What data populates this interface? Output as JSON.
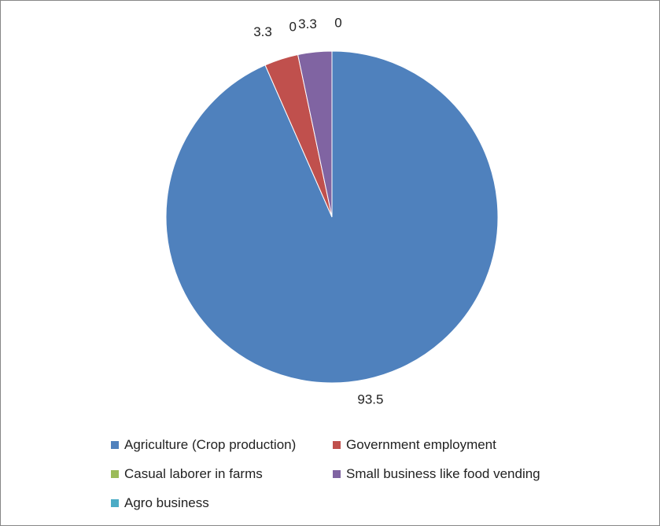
{
  "chart_data": {
    "type": "pie",
    "categories": [
      "Agriculture (Crop production)",
      "Government employment",
      "Casual laborer in farms",
      "Small business like food vending",
      "Agro business"
    ],
    "values": [
      93.5,
      3.3,
      0,
      3.3,
      0
    ],
    "data_labels": [
      "93.5",
      "3.3",
      "0",
      "3.3",
      "0"
    ],
    "colors": [
      "#4F81BD",
      "#C0504D",
      "#9BBB59",
      "#8064A2",
      "#4BACC6"
    ],
    "start_angle_deg": 0,
    "direction": "clockwise",
    "legend_position": "bottom"
  }
}
